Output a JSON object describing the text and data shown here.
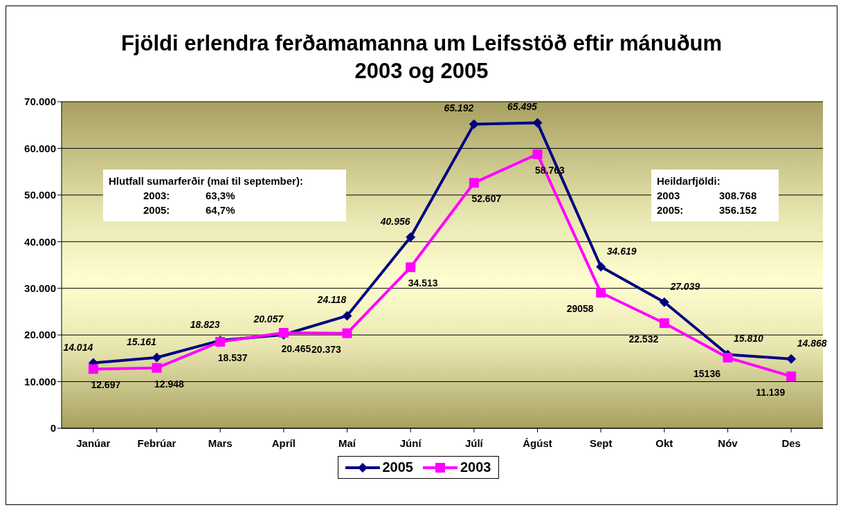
{
  "chart_data": {
    "type": "line",
    "title": "Fjöldi erlendra ferðamamanna um Leifsstöð eftir mánuðum\n2003 og 2005",
    "categories": [
      "Janúar",
      "Febrúar",
      "Mars",
      "Apríl",
      "Maí",
      "Júní",
      "Júlí",
      "Ágúst",
      "Sept",
      "Okt",
      "Nóv",
      "Des"
    ],
    "series": [
      {
        "name": "2005",
        "color": "#000080",
        "marker": "diamond",
        "values": [
          14014,
          15161,
          18823,
          20057,
          24118,
          40956,
          65192,
          65495,
          34619,
          27039,
          15810,
          14868
        ],
        "value_labels": [
          "14.014",
          "15.161",
          "18.823",
          "20.057",
          "24.118",
          "40.956",
          "65.192",
          "65.495",
          "34.619",
          "27.039",
          "15.810",
          "14.868"
        ]
      },
      {
        "name": "2003",
        "color": "#ff00ff",
        "marker": "square",
        "values": [
          12697,
          12948,
          18537,
          20465,
          20373,
          34513,
          52607,
          58763,
          29058,
          22532,
          15136,
          11139
        ],
        "value_labels": [
          "12.697",
          "12.948",
          "18.537",
          "20.465",
          "20.373",
          "34.513",
          "52.607",
          "58.763",
          "29058",
          "22.532",
          "15136",
          "11.139"
        ]
      }
    ],
    "ylim": [
      0,
      70000
    ],
    "yticks": [
      0,
      {
        "value": 10000,
        "label": "10.000"
      },
      {
        "value": 20000,
        "label": "20.000"
      },
      {
        "value": 30000,
        "label": "30.000"
      },
      {
        "value": 40000,
        "label": "40.000"
      },
      {
        "value": 50000,
        "label": "50.000"
      },
      {
        "value": 60000,
        "label": "60.000"
      },
      {
        "value": 70000,
        "label": "70.000"
      }
    ],
    "grid": "y",
    "legend": "bottom",
    "line_style": "solid",
    "annotations": [
      "Hlutfall sumarferðir (maí til september):\n2003:\t63,3%\n2005:\t64,7%",
      "Heildarfjöldi:\n2003\t308.768\n2005:\t356.152"
    ]
  }
}
